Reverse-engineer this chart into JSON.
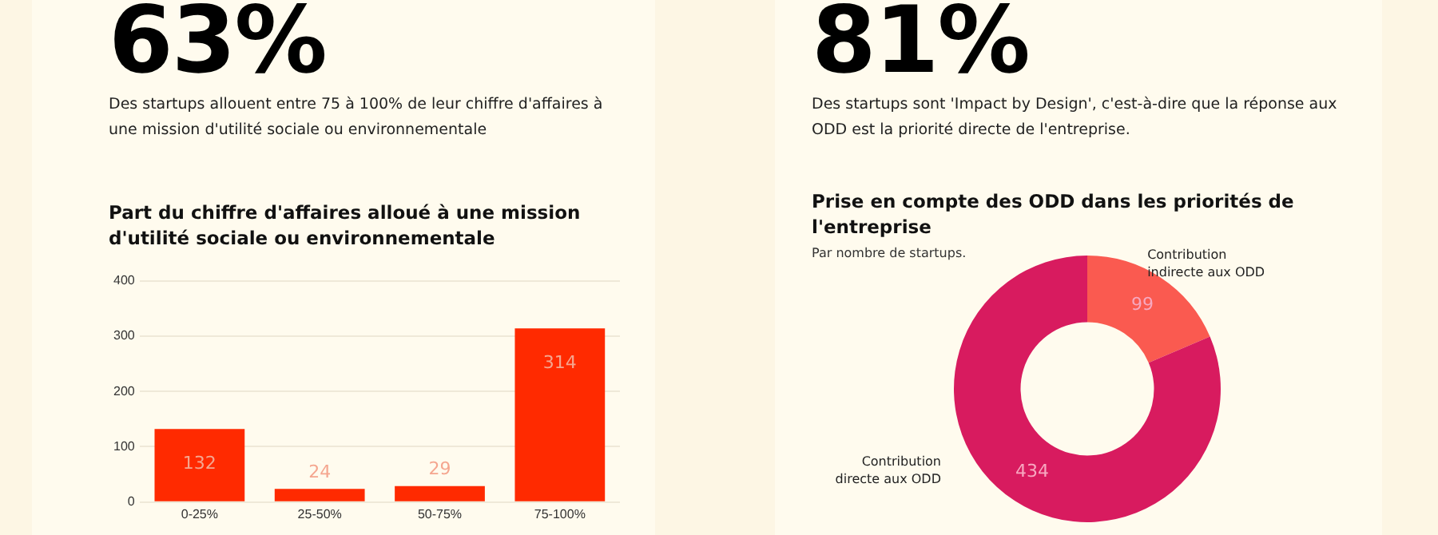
{
  "chart_data": [
    {
      "type": "bar",
      "title": "Part du chiffre d'affaires alloué à une mission d'utilité sociale ou environnementale",
      "annotations": [
        "63%",
        "Des startups allouent entre 75 à 100% de leur chiffre d'affaires à une mission d'utilité sociale ou environnementale"
      ],
      "categories": [
        "0-25%",
        "25-50%",
        "50-75%",
        "75-100%"
      ],
      "values": [
        132,
        24,
        29,
        314
      ],
      "color": "#ff2a00",
      "ylim": [
        0,
        400
      ],
      "yticks": [
        0,
        100,
        200,
        300,
        400
      ],
      "grid": "y",
      "data_labels": true,
      "legend": false
    },
    {
      "type": "donut",
      "title": "Prise en compte des ODD dans les priorités de l'entreprise",
      "subtitle": "Par nombre de startups.",
      "annotations": [
        "81%",
        "Des startups sont 'Impact by Design', c'est-à-dire que la réponse aux ODD est la priorité directe de l'entreprise."
      ],
      "categories": [
        "Contribution indirecte aux ODD",
        "Contribution directe aux ODD"
      ],
      "values": [
        99,
        434
      ],
      "colors": [
        "#fa5a50",
        "#d81b5f"
      ],
      "data_labels": true,
      "legend": false
    }
  ]
}
